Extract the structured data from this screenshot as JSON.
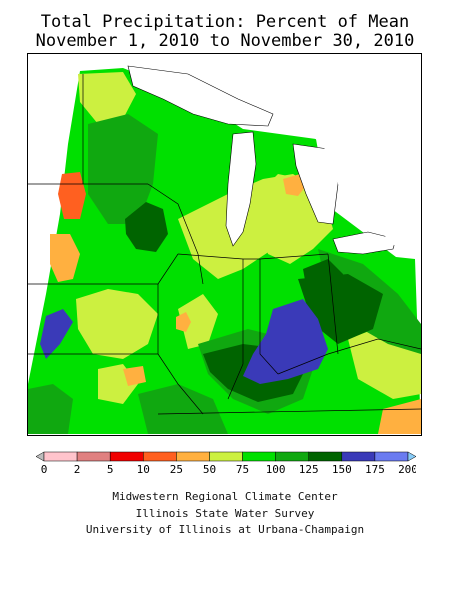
{
  "title": {
    "line1": "Total Precipitation: Percent of Mean",
    "line2": "November 1, 2010 to November 30, 2010"
  },
  "legend": {
    "labels": [
      "0",
      "2",
      "5",
      "10",
      "25",
      "50",
      "75",
      "100",
      "125",
      "150",
      "175",
      "200"
    ],
    "colors": [
      "#bdbdbd",
      "#ffc4cc",
      "#e08080",
      "#f00000",
      "#ff6020",
      "#ffb040",
      "#ccf040",
      "#00e000",
      "#10a810",
      "#006400",
      "#3a3ab8",
      "#6a7bf0",
      "#88ccf8"
    ]
  },
  "map_colors": {
    "lime": "#ccf040",
    "green": "#00e000",
    "mid_green": "#10a810",
    "dark_green": "#006400",
    "blue": "#3a3ab8",
    "orange": "#ffb040",
    "red_orange": "#ff6020"
  },
  "credits": {
    "line1": "Midwestern Regional Climate Center",
    "line2": "Illinois State Water Survey",
    "line3": "University of Illinois at Urbana-Champaign"
  }
}
